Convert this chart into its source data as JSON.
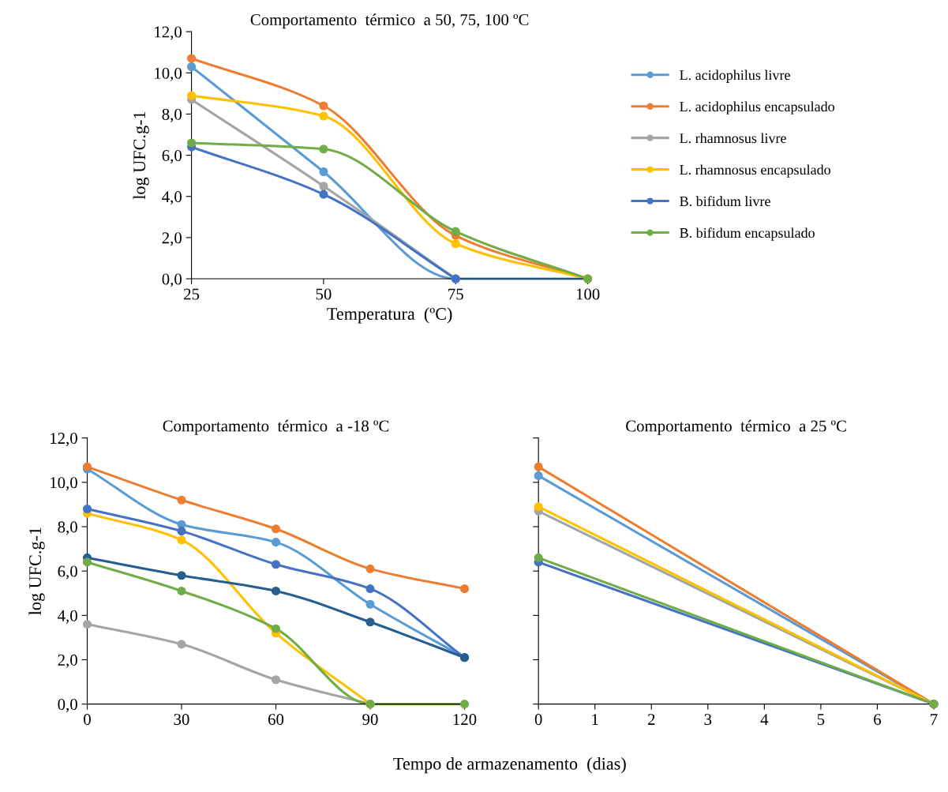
{
  "chart_data": [
    {
      "type": "line",
      "title": "Comportamento  térmico  a 50, 75, 100 ºC",
      "xlabel": "Temperatura  (ºC)",
      "ylabel": "log UFC.g-1",
      "x": [
        25,
        50,
        75,
        100
      ],
      "xlim": [
        25,
        100
      ],
      "xticks": [
        25,
        50,
        75,
        100
      ],
      "ylim": [
        0,
        12
      ],
      "yticks": [
        {
          "value": 0,
          "label": "0,0"
        },
        {
          "value": 2,
          "label": "2,0"
        },
        {
          "value": 4,
          "label": "4,0"
        },
        {
          "value": 6,
          "label": "6,0"
        },
        {
          "value": 8,
          "label": "8,0"
        },
        {
          "value": 10,
          "label": "10,0"
        },
        {
          "value": 12,
          "label": "12,0"
        }
      ],
      "marker": "circle",
      "grid": false,
      "legend": "right",
      "series": [
        {
          "name": "L. acidophilus livre",
          "color": "#5b9bd5",
          "values": [
            10.3,
            5.2,
            0,
            0
          ]
        },
        {
          "name": "L. acidophilus encapsulado",
          "color": "#ed7d31",
          "values": [
            10.7,
            8.4,
            2.1,
            0
          ]
        },
        {
          "name": "L. rhamnosus livre",
          "color": "#a5a5a5",
          "values": [
            8.7,
            4.5,
            0,
            null
          ]
        },
        {
          "name": "L. rhamnosus encapsulado",
          "color": "#ffc000",
          "values": [
            8.9,
            7.9,
            1.7,
            0
          ]
        },
        {
          "name": "B. bifidum livre",
          "color": "#4472c4",
          "values": [
            6.4,
            4.1,
            0,
            null
          ]
        },
        {
          "name": "B. bifidum encapsulado",
          "color": "#70ad47",
          "values": [
            6.6,
            6.3,
            2.3,
            0
          ]
        }
      ]
    },
    {
      "type": "line",
      "title": "Comportamento  térmico  a -18 ºC",
      "xlabel": "Tempo de armazenamento  (dias)",
      "ylabel": "log UFC.g-1",
      "x": [
        0,
        30,
        60,
        90,
        120
      ],
      "xlim": [
        0,
        120
      ],
      "xticks": [
        0,
        30,
        60,
        90,
        120
      ],
      "ylim": [
        0,
        12
      ],
      "yticks": [
        {
          "value": 0,
          "label": "0,0"
        },
        {
          "value": 2,
          "label": "2,0"
        },
        {
          "value": 4,
          "label": "4,0"
        },
        {
          "value": 6,
          "label": "6,0"
        },
        {
          "value": 8,
          "label": "8,0"
        },
        {
          "value": 10,
          "label": "10,0"
        },
        {
          "value": 12,
          "label": "12,0"
        }
      ],
      "marker": "circle",
      "grid": false,
      "series": [
        {
          "color": "#5b9bd5",
          "values": [
            10.6,
            8.1,
            7.3,
            4.5,
            2.1
          ]
        },
        {
          "color": "#ed7d31",
          "values": [
            10.7,
            9.2,
            7.9,
            6.1,
            5.2
          ]
        },
        {
          "color": "#a5a5a5",
          "values": [
            3.6,
            2.7,
            1.1,
            0,
            null
          ]
        },
        {
          "color": "#ffc000",
          "values": [
            8.6,
            7.4,
            3.2,
            0,
            null
          ]
        },
        {
          "color": "#4472c4",
          "values": [
            8.8,
            7.8,
            6.3,
            5.2,
            2.1
          ]
        },
        {
          "color": "#255e91",
          "values": [
            6.6,
            5.8,
            5.1,
            3.7,
            2.1
          ]
        },
        {
          "color": "#70ad47",
          "values": [
            6.4,
            5.1,
            3.4,
            0,
            0
          ]
        }
      ]
    },
    {
      "type": "line",
      "title": "Comportamento  térmico  a 25 ºC",
      "x": [
        0,
        7
      ],
      "xlim": [
        0,
        7
      ],
      "xticks": [
        0,
        1,
        2,
        3,
        4,
        5,
        6,
        7
      ],
      "ylim": [
        0,
        12
      ],
      "yticks": [
        0,
        2,
        4,
        6,
        8,
        10,
        12
      ],
      "tick_labels": "x",
      "marker": "circle",
      "grid": false,
      "series": [
        {
          "color": "#5b9bd5",
          "values": [
            10.3,
            0
          ]
        },
        {
          "color": "#ed7d31",
          "values": [
            10.7,
            0
          ]
        },
        {
          "color": "#a5a5a5",
          "values": [
            8.7,
            0
          ]
        },
        {
          "color": "#ffc000",
          "values": [
            8.9,
            0
          ]
        },
        {
          "color": "#4472c4",
          "values": [
            6.4,
            0
          ]
        },
        {
          "color": "#70ad47",
          "values": [
            6.6,
            0
          ]
        }
      ]
    }
  ]
}
